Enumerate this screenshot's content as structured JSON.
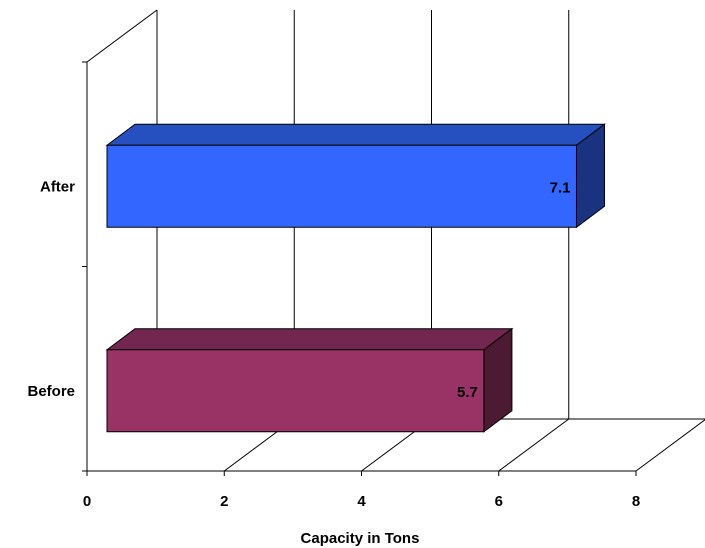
{
  "chart_data": {
    "type": "bar",
    "orientation": "horizontal",
    "three_d": true,
    "categories": [
      "Before",
      "After"
    ],
    "values": [
      5.7,
      7.1
    ],
    "data_labels": [
      "5.7",
      "7.1"
    ],
    "colors": [
      "#993366",
      "#3366FF"
    ],
    "side_colors": [
      "#4D1A33",
      "#1A3380"
    ],
    "top_colors": [
      "#732650",
      "#2650C0"
    ],
    "xlabel": "Capacity in Tons",
    "ylabel": "",
    "xlim": [
      0,
      8
    ],
    "x_ticks": [
      "0",
      "2",
      "4",
      "6",
      "8"
    ],
    "grid": true,
    "legend": "none"
  }
}
